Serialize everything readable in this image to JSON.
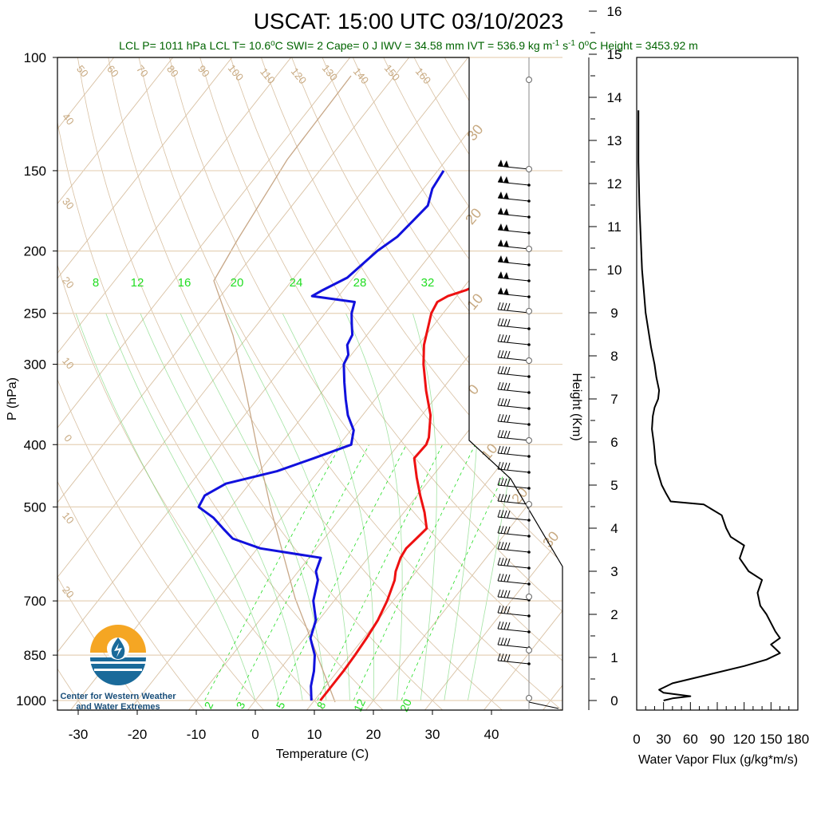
{
  "title": "USCAT: 15:00 UTC 03/10/2023",
  "subtitle": {
    "lcl_p": "LCL P= 1011 hPa",
    "lcl_t": "LCL T= 10.6",
    "lcl_t_unit": "C",
    "swi": "SWI= 2",
    "cape": "Cape= 0 J",
    "iwv": "IWV = 34.58 mm",
    "ivt": "IVT = 536.9 kg m",
    "ivt_exp1": "-1",
    "ivt_s": " s",
    "ivt_exp2": "-1",
    "zero_height": "0",
    "zero_height_rest": "C Height = 3453.92 m"
  },
  "colors": {
    "temperature": "#ee1111",
    "dewpoint": "#1111dd",
    "isotherm": "#d8c0a2",
    "isotherm_label": "#c8aa82",
    "mixing_ratio": "#22dd22",
    "moist_adiabat": "#55cc55",
    "parcel": "#c8a888",
    "logo_orange": "#f5a623",
    "logo_blue": "#1a6a9a"
  },
  "logo": {
    "line1": "Center for Western Weather",
    "line2": "and Water Extremes"
  },
  "chart_data": [
    {
      "type": "line",
      "xlabel": "Temperature (C)",
      "ylabel": "P (hPa)",
      "x_ticks": [
        "-30",
        "-20",
        "-10",
        "0",
        "10",
        "20",
        "30",
        "40"
      ],
      "x_tick_values": [
        -30,
        -20,
        -10,
        0,
        10,
        20,
        30,
        40
      ],
      "xlim": [
        -33,
        52
      ],
      "ylim": [
        1050,
        100
      ],
      "y_scale": "log",
      "y_ticks": [
        "100",
        "150",
        "200",
        "250",
        "300",
        "400",
        "500",
        "700",
        "850",
        "1000"
      ],
      "y_tick_values": [
        100,
        150,
        200,
        250,
        300,
        400,
        500,
        700,
        850,
        1000
      ],
      "isotherm_labels": [
        "50",
        "60",
        "70",
        "80",
        "90",
        "100",
        "110",
        "120",
        "130",
        "140",
        "150",
        "160",
        "40",
        "30",
        "20",
        "10",
        "0",
        "10",
        "20"
      ],
      "right_isotherm_labels": [
        "30",
        "20",
        "10",
        "0",
        "10",
        "20",
        "30"
      ],
      "mixing_ratio_top_labels": [
        "8",
        "12",
        "16",
        "20",
        "24",
        "28",
        "32"
      ],
      "mixing_ratio_bottom_labels": [
        "2",
        "3",
        "5",
        "8",
        "12",
        "20"
      ],
      "series": [
        {
          "key": "temperature",
          "p": [
            150,
            160,
            170,
            175,
            180,
            190,
            200,
            210,
            220,
            230,
            235,
            240,
            250,
            280,
            300,
            330,
            360,
            390,
            400,
            420,
            450,
            480,
            510,
            540,
            560,
            580,
            600,
            630,
            650,
            700,
            750,
            800,
            850,
            900,
            950,
            1000
          ],
          "t": [
            -14.8,
            -13.5,
            -12.3,
            -12.5,
            -13.5,
            -14.0,
            -15.0,
            -15.2,
            -16.5,
            -19.2,
            -21.5,
            -22.5,
            -22.0,
            -19.0,
            -16.5,
            -12.5,
            -8.5,
            -5.8,
            -5.3,
            -5.5,
            -2.5,
            0.5,
            3.5,
            6.0,
            5.6,
            5.2,
            5.5,
            6.5,
            7.5,
            9.0,
            10.0,
            10.5,
            10.8,
            11.0,
            11.0,
            11.0
          ]
        },
        {
          "key": "dewpoint",
          "p": [
            150,
            160,
            170,
            180,
            190,
            200,
            220,
            230,
            235,
            240,
            250,
            260,
            270,
            280,
            290,
            300,
            320,
            340,
            360,
            380,
            400,
            420,
            440,
            460,
            480,
            500,
            520,
            540,
            560,
            580,
            600,
            630,
            650,
            700,
            750,
            800,
            850,
            900,
            950,
            1000
          ],
          "t": [
            -39.0,
            -38.5,
            -37.0,
            -37.5,
            -38.0,
            -39.5,
            -41.0,
            -43.5,
            -44.5,
            -36.5,
            -35.5,
            -34.0,
            -32.5,
            -32.0,
            -30.5,
            -30.0,
            -27.5,
            -25.0,
            -22.5,
            -19.5,
            -18.0,
            -22.5,
            -27.0,
            -34.0,
            -36.0,
            -35.5,
            -31.5,
            -28.5,
            -25.5,
            -19.5,
            -8.0,
            -7.0,
            -5.5,
            -3.5,
            -0.5,
            1.0,
            4.0,
            6.0,
            7.5,
            9.5
          ]
        }
      ]
    },
    {
      "type": "line",
      "xlabel": "Water Vapor Flux (g/kg*m/s)",
      "ylabel": "Height (Km)",
      "x_ticks": [
        "0",
        "30",
        "60",
        "90",
        "120",
        "150",
        "180"
      ],
      "x_tick_values": [
        0,
        30,
        60,
        90,
        120,
        150,
        180
      ],
      "xlim": [
        0,
        180
      ],
      "y_ticks": [
        "0",
        "1",
        "2",
        "3",
        "4",
        "5",
        "6",
        "7",
        "8",
        "9",
        "10",
        "11",
        "12",
        "13",
        "14",
        "15",
        "16"
      ],
      "y_tick_values": [
        0,
        1,
        2,
        3,
        4,
        5,
        6,
        7,
        8,
        9,
        10,
        11,
        12,
        13,
        14,
        15,
        16
      ],
      "ylim": [
        -0.3,
        16.5
      ],
      "series": [
        {
          "key": "flux",
          "height": [
            13.7,
            12.5,
            11.5,
            11.0,
            10.5,
            10.0,
            9.5,
            9.0,
            8.6,
            8.2,
            7.8,
            7.5,
            7.2,
            7.0,
            6.8,
            6.6,
            6.3,
            6.0,
            5.8,
            5.5,
            5.2,
            5.0,
            4.8,
            4.62,
            4.55,
            4.3,
            4.0,
            3.8,
            3.6,
            3.3,
            3.0,
            2.8,
            2.5,
            2.2,
            2.0,
            1.8,
            1.6,
            1.45,
            1.3,
            1.1,
            0.95,
            0.8,
            0.6,
            0.4,
            0.25,
            0.18,
            0.1,
            0.05,
            0.0
          ],
          "flux": [
            2,
            2,
            3,
            4,
            5,
            6,
            8,
            10,
            13,
            16,
            20,
            22,
            25,
            24,
            20,
            18,
            17,
            19,
            20,
            21,
            25,
            28,
            33,
            38,
            75,
            95,
            100,
            105,
            120,
            115,
            125,
            140,
            135,
            138,
            145,
            150,
            155,
            160,
            150,
            160,
            145,
            120,
            80,
            40,
            25,
            30,
            60,
            40,
            30
          ]
        }
      ]
    }
  ]
}
